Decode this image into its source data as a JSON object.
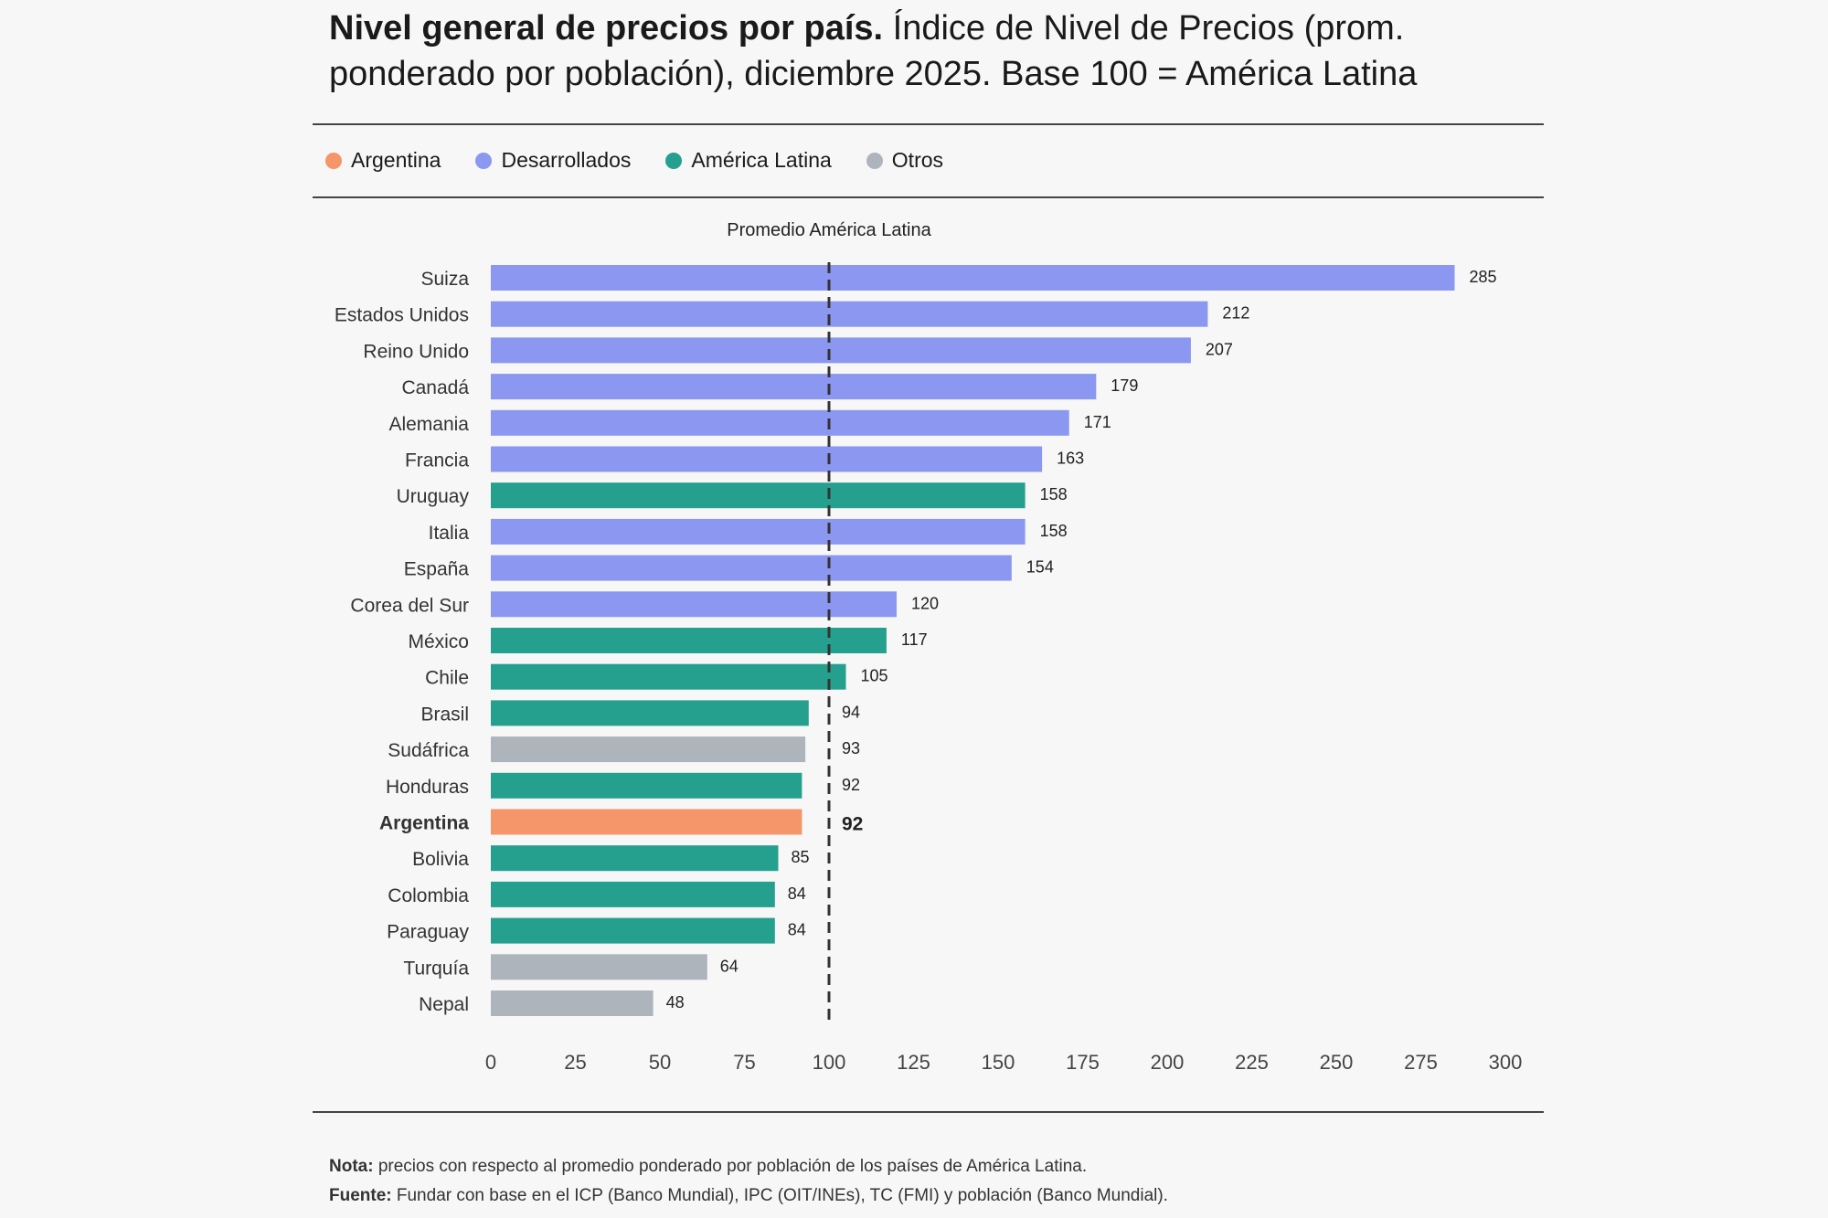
{
  "title": {
    "bold": "Nivel general de precios por país.",
    "rest": " Índice de Nivel de Precios (prom. ponderado por población), diciembre 2025. Base 100 = América Latina"
  },
  "legend": [
    {
      "label": "Argentina",
      "color": "#F4956A"
    },
    {
      "label": "Desarrollados",
      "color": "#8B97F0"
    },
    {
      "label": "América Latina",
      "color": "#26A08E"
    },
    {
      "label": "Otros",
      "color": "#ADB4BC"
    }
  ],
  "footer": {
    "nota_label": "Nota:",
    "nota_text": " precios con respecto al promedio ponderado por población de los países de América Latina.",
    "fuente_label": "Fuente:",
    "fuente_text": " Fundar con base en el ICP (Banco Mundial), IPC (OIT/INEs), TC (FMI) y población (Banco Mundial)."
  },
  "chart_data": {
    "type": "bar",
    "orientation": "horizontal",
    "xlim": [
      0,
      300
    ],
    "xticks": [
      0,
      25,
      50,
      75,
      100,
      125,
      150,
      175,
      200,
      225,
      250,
      275,
      300
    ],
    "grid": false,
    "legend_position": "top-left",
    "reference_line": {
      "value": 100,
      "label": "Promedio América Latina",
      "style": "dashed"
    },
    "categories": [
      "Suiza",
      "Estados Unidos",
      "Reino Unido",
      "Canadá",
      "Alemania",
      "Francia",
      "Uruguay",
      "Italia",
      "España",
      "Corea del Sur",
      "México",
      "Chile",
      "Brasil",
      "Sudáfrica",
      "Honduras",
      "Argentina",
      "Bolivia",
      "Colombia",
      "Paraguay",
      "Turquía",
      "Nepal"
    ],
    "values": [
      285,
      212,
      207,
      179,
      171,
      163,
      158,
      158,
      154,
      120,
      117,
      105,
      94,
      93,
      92,
      92,
      85,
      84,
      84,
      64,
      48
    ],
    "groups": [
      "Desarrollados",
      "Desarrollados",
      "Desarrollados",
      "Desarrollados",
      "Desarrollados",
      "Desarrollados",
      "América Latina",
      "Desarrollados",
      "Desarrollados",
      "Desarrollados",
      "América Latina",
      "América Latina",
      "América Latina",
      "Otros",
      "América Latina",
      "Argentina",
      "América Latina",
      "América Latina",
      "América Latina",
      "Otros",
      "Otros"
    ],
    "highlight": "Argentina"
  }
}
